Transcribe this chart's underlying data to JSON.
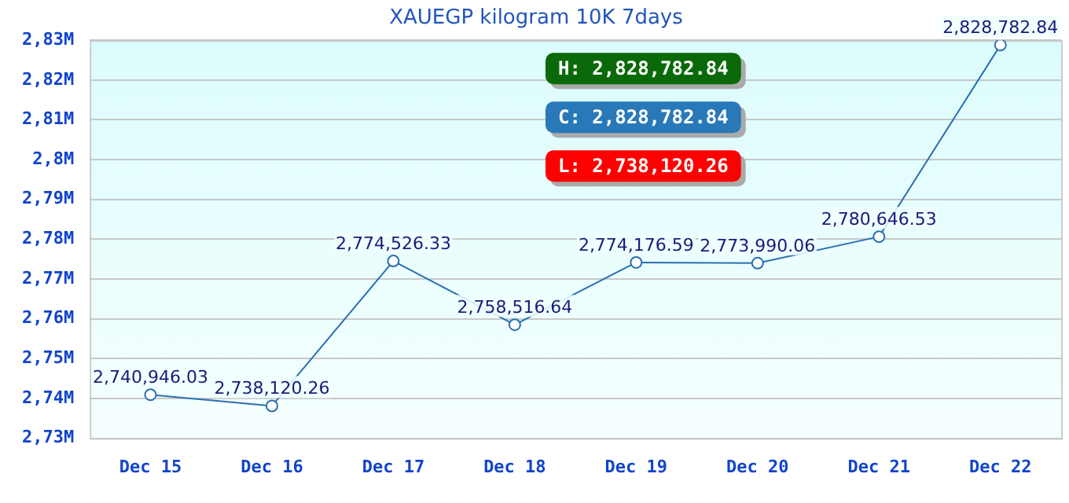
{
  "chart_data": {
    "type": "line",
    "title": "XAUEGP kilogram 10K 7days",
    "categories": [
      "Dec 15",
      "Dec 16",
      "Dec 17",
      "Dec 18",
      "Dec 19",
      "Dec 20",
      "Dec 21",
      "Dec 22"
    ],
    "series": [
      {
        "color": "#2a6fb0",
        "values": [
          2740946.03,
          2738120.26,
          2774526.33,
          2758516.64,
          2774176.59,
          2773990.06,
          2780646.53,
          2828782.84
        ],
        "value_labels": [
          "2,740,946.03",
          "2,738,120.26",
          "2,774,526.33",
          "2,758,516.64",
          "2,774,176.59",
          "2,773,990.06",
          "2,780,646.53",
          "2,828,782.84"
        ]
      }
    ],
    "ylim": [
      2730000,
      2830000
    ],
    "yticks": [
      {
        "value": 2730000,
        "label": "2,73M"
      },
      {
        "value": 2740000,
        "label": "2,74M"
      },
      {
        "value": 2750000,
        "label": "2,75M"
      },
      {
        "value": 2760000,
        "label": "2,76M"
      },
      {
        "value": 2770000,
        "label": "2,77M"
      },
      {
        "value": 2780000,
        "label": "2,78M"
      },
      {
        "value": 2790000,
        "label": "2,79M"
      },
      {
        "value": 2800000,
        "label": "2,8M"
      },
      {
        "value": 2810000,
        "label": "2,81M"
      },
      {
        "value": 2820000,
        "label": "2,82M"
      },
      {
        "value": 2830000,
        "label": "2,83M"
      }
    ],
    "annotations": [
      "H: 2,828,782.84",
      "C: 2,828,782.84",
      "L: 2,738,120.26"
    ],
    "grid": "y",
    "marker": "circle",
    "line_style": "solid",
    "legend": false
  }
}
